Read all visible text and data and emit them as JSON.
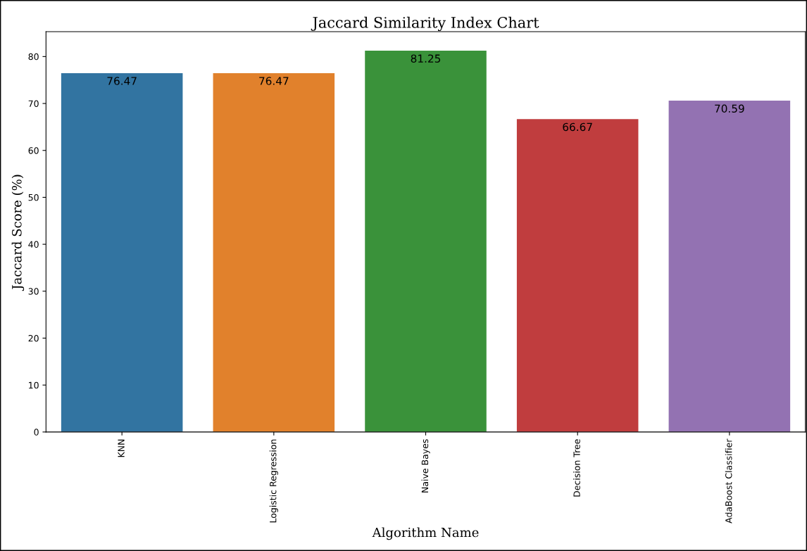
{
  "chart_data": {
    "type": "bar",
    "title": "Jaccard Similarity Index Chart",
    "xlabel": "Algorithm Name",
    "ylabel": "Jaccard Score (%)",
    "categories": [
      "KNN",
      "Logistic Regression",
      "Naive Bayes",
      "Decision Tree",
      "AdaBoost Classifier"
    ],
    "values": [
      76.47,
      76.47,
      81.25,
      66.67,
      70.59
    ],
    "colors": [
      "#3274a1",
      "#e1812c",
      "#3a923a",
      "#c03d3e",
      "#9372b2"
    ],
    "ylim": [
      0,
      85.3
    ],
    "yticks": [
      0,
      10,
      20,
      30,
      40,
      50,
      60,
      70,
      80
    ],
    "grid": false,
    "data_labels": true
  }
}
